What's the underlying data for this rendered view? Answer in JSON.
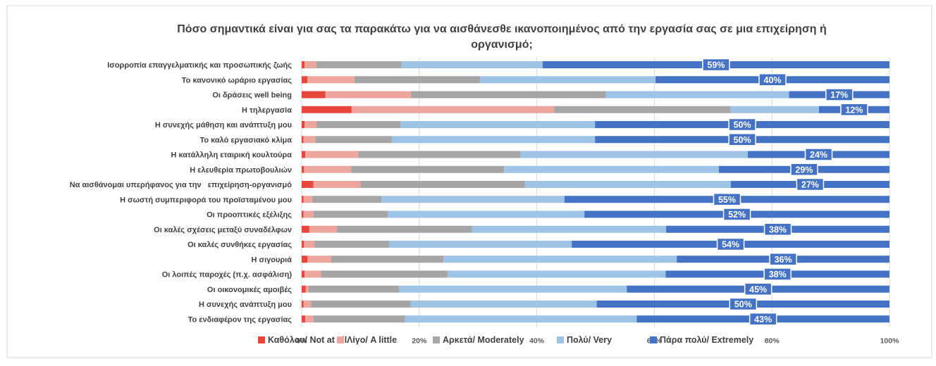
{
  "chart_data": {
    "type": "bar",
    "orientation": "horizontal",
    "stacked": "percent",
    "title_line1": "Πόσο σημαντικά είναι για σας τα παρακάτω για να αισθάνεσθε ικανοποιημένος από την εργασία σας σε μια επιχείρηση ή",
    "title_line2": "οργανισμό;",
    "categories": [
      "Ισορροπία επαγγελματικής και προσωπικής ζωής",
      "Το κανονικό ωράριο εργασίας",
      "Οι δράσεις well being",
      "Η τηλεργασία",
      "Η συνεχής μάθηση και ανάπτυξη μου",
      "Το καλό εργασιακό κλίμα",
      "Η κατάλληλη εταιρική κουλτούρα",
      "Η ελευθερία πρωτοβουλιών",
      "Να αισθάνομαι υπερήφανος για την   επιχείρηση-οργανισμό",
      "Η σωστή συμπεριφορά του προϊσταμένου μου",
      "Οι προοπτικές εξέλιξης",
      "Οι καλές σχέσεις μεταξύ συναδέλφων",
      "Οι καλές συνθήκες εργασίας",
      "Η σιγουριά",
      "Οι λοιπές παροχές (π.χ. ασφάλιση)",
      "Οι οικονομικές αμοιβές",
      "Η συνεχής ανάπτυξη μου",
      "Το ενδιαφέρον της εργασίας"
    ],
    "series": [
      {
        "name": "Καθόλου/ Not at all",
        "color": "#e8463c",
        "values": [
          0.5,
          1,
          4,
          8.5,
          0.5,
          0.3,
          0.6,
          0.4,
          2,
          0.3,
          0.3,
          1.3,
          0.4,
          1,
          0.5,
          0.7,
          0.3,
          0.6
        ]
      },
      {
        "name": "Λίγο/ A little",
        "color": "#eea59d",
        "values": [
          2,
          8,
          14.5,
          34.5,
          2,
          2,
          9,
          8,
          8,
          1.5,
          1.7,
          4.7,
          1.8,
          4,
          2.8,
          0.5,
          1.3,
          1.4
        ]
      },
      {
        "name": "Αρκετά/ Moderately",
        "color": "#a5a5a5",
        "values": [
          14.5,
          21.5,
          33,
          30,
          14.3,
          13,
          27.5,
          26,
          28,
          11.7,
          12.7,
          23,
          12.7,
          19,
          21.5,
          15.5,
          17,
          15.6
        ]
      },
      {
        "name": "Πολύ/ Very",
        "color": "#9dc3e6",
        "values": [
          24,
          30,
          31,
          15,
          33,
          34.5,
          38.5,
          36.5,
          35,
          31,
          33.5,
          33,
          31,
          39.5,
          37,
          39,
          31.8,
          39.4
        ]
      },
      {
        "name": "Πάρα πολύ/ Extremely",
        "color": "#4472c4",
        "values": [
          59,
          40,
          17,
          12,
          50,
          50,
          24,
          29,
          27,
          55,
          52,
          38,
          54,
          36,
          38,
          45,
          50,
          43
        ]
      }
    ],
    "data_labels": [
      "59%",
      "40%",
      "17%",
      "12%",
      "50%",
      "50%",
      "24%",
      "29%",
      "27%",
      "55%",
      "52%",
      "38%",
      "54%",
      "36%",
      "38%",
      "45%",
      "50%",
      "43%"
    ],
    "x_ticks": [
      "0%",
      "20%",
      "40%",
      "60%",
      "80%",
      "100%"
    ],
    "xlim": [
      0,
      100
    ],
    "grid": true,
    "legend_position": "bottom"
  }
}
